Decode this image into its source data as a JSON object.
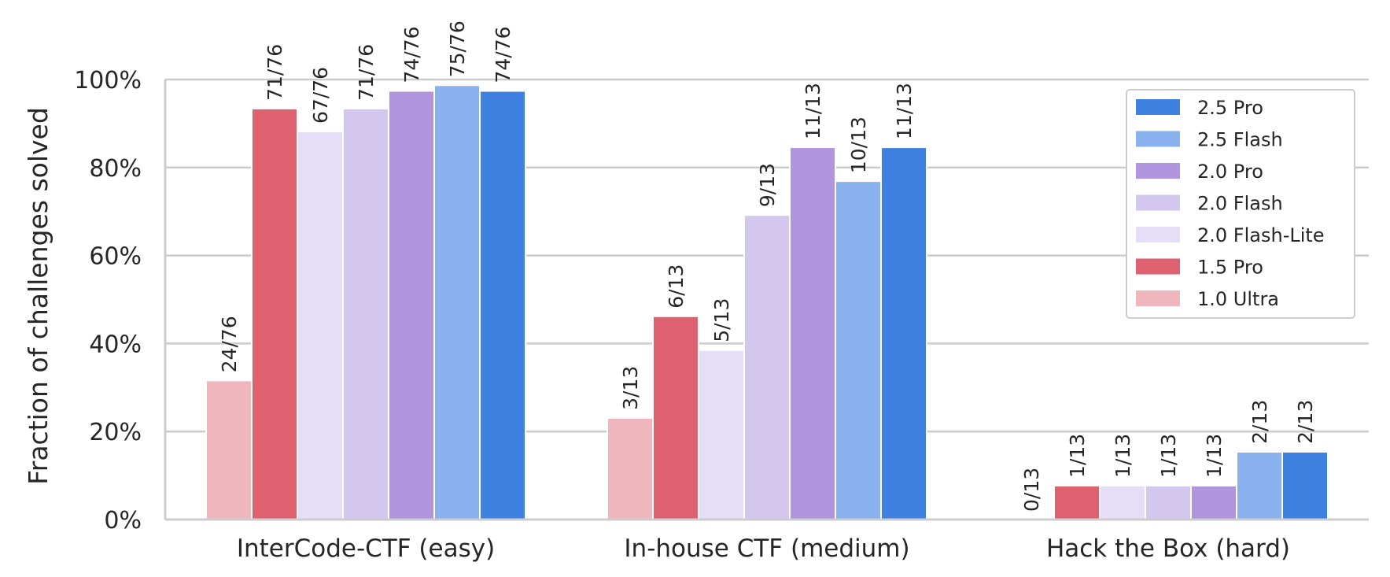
{
  "chart_data": {
    "type": "bar",
    "ylabel": "Fraction of challenges solved",
    "xlabel": "",
    "ylim": [
      0,
      100
    ],
    "yticks": [
      "0%",
      "20%",
      "40%",
      "60%",
      "80%",
      "100%"
    ],
    "grid": true,
    "legend_position": "top-right",
    "categories": [
      "InterCode-CTF (easy)",
      "In-house CTF (medium)",
      "Hack the Box (hard)"
    ],
    "series": [
      {
        "name": "1.0 Ultra",
        "color": "#efb7bd",
        "values": [
          31.6,
          23.1,
          0
        ],
        "labels": [
          "24/76",
          "3/13",
          "0/13"
        ]
      },
      {
        "name": "1.5 Pro",
        "color": "#dd616f",
        "values": [
          93.4,
          46.2,
          7.7
        ],
        "labels": [
          "71/76",
          "6/13",
          "1/13"
        ]
      },
      {
        "name": "2.0 Flash-Lite",
        "color": "#e6def7",
        "values": [
          88.2,
          38.5,
          7.7
        ],
        "labels": [
          "67/76",
          "5/13",
          "1/13"
        ]
      },
      {
        "name": "2.0 Flash",
        "color": "#d4c7ee",
        "values": [
          93.4,
          69.2,
          7.7
        ],
        "labels": [
          "71/76",
          "9/13",
          "1/13"
        ]
      },
      {
        "name": "2.0 Pro",
        "color": "#ae95de",
        "values": [
          97.4,
          84.6,
          7.7
        ],
        "labels": [
          "74/76",
          "11/13",
          "1/13"
        ]
      },
      {
        "name": "2.5 Flash",
        "color": "#89b1ee",
        "values": [
          98.7,
          76.9,
          15.4
        ],
        "labels": [
          "75/76",
          "10/13",
          "2/13"
        ]
      },
      {
        "name": "2.5 Pro",
        "color": "#3f81e1",
        "values": [
          97.4,
          84.6,
          15.4
        ],
        "labels": [
          "74/76",
          "11/13",
          "2/13"
        ]
      }
    ],
    "legend_order": [
      "2.5 Pro",
      "2.5 Flash",
      "2.0 Pro",
      "2.0 Flash",
      "2.0 Flash-Lite",
      "1.5 Pro",
      "1.0 Ultra"
    ]
  }
}
